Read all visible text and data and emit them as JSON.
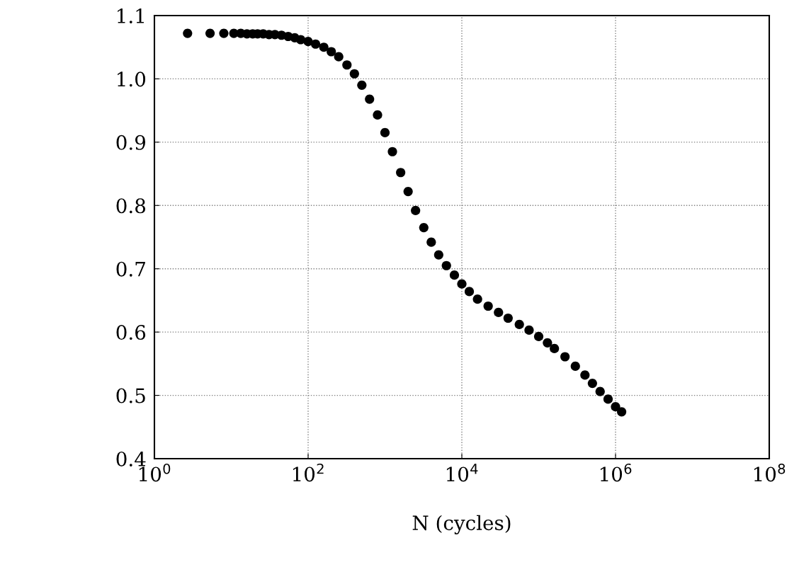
{
  "chart_data": {
    "type": "scatter",
    "xlabel": "N (cycles)",
    "log": "x",
    "grid": true,
    "marker": "circle",
    "xlim": [
      1,
      100000000
    ],
    "ylim": [
      0.4,
      1.1
    ],
    "xticks": [
      {
        "value": 1,
        "label": "10$^{0}$"
      },
      {
        "value": 100,
        "label": "10$^{2}$"
      },
      {
        "value": 10000,
        "label": "10$^{4}$"
      },
      {
        "value": 1000000,
        "label": "10$^{6}$"
      },
      {
        "value": 100000000,
        "label": "10$^{8}$"
      }
    ],
    "yticks": [
      {
        "value": 0.4,
        "label": "0.4"
      },
      {
        "value": 0.5,
        "label": "0.5"
      },
      {
        "value": 0.6,
        "label": "0.6"
      },
      {
        "value": 0.7,
        "label": "0.7"
      },
      {
        "value": 0.8,
        "label": "0.8"
      },
      {
        "value": 0.9,
        "label": "0.9"
      },
      {
        "value": 1.0,
        "label": "1.0"
      },
      {
        "value": 1.1,
        "label": "1.1"
      }
    ],
    "series": [
      {
        "color": "#000000",
        "x": [
          2.7,
          5.3,
          8,
          10.8,
          13.3,
          16,
          19,
          22,
          26,
          31,
          37,
          45,
          55,
          67,
          80,
          100,
          125,
          160,
          200,
          250,
          320,
          400,
          500,
          630,
          800,
          1000,
          1250,
          1600,
          2000,
          2500,
          3200,
          4000,
          5000,
          6300,
          8000,
          10000,
          12500,
          16000,
          22000,
          30000,
          40000,
          56000,
          75000,
          100000,
          130000,
          160000,
          220000,
          300000,
          400000,
          500000,
          630000,
          800000,
          1000000,
          1200000
        ],
        "values": [
          1.072,
          1.072,
          1.072,
          1.072,
          1.072,
          1.071,
          1.071,
          1.071,
          1.071,
          1.07,
          1.07,
          1.069,
          1.067,
          1.065,
          1.062,
          1.059,
          1.055,
          1.05,
          1.043,
          1.035,
          1.022,
          1.008,
          0.99,
          0.968,
          0.943,
          0.915,
          0.885,
          0.852,
          0.822,
          0.792,
          0.765,
          0.742,
          0.722,
          0.705,
          0.69,
          0.676,
          0.664,
          0.652,
          0.641,
          0.631,
          0.622,
          0.612,
          0.603,
          0.593,
          0.583,
          0.574,
          0.561,
          0.546,
          0.532,
          0.519,
          0.506,
          0.494,
          0.482,
          0.474
        ]
      }
    ]
  }
}
